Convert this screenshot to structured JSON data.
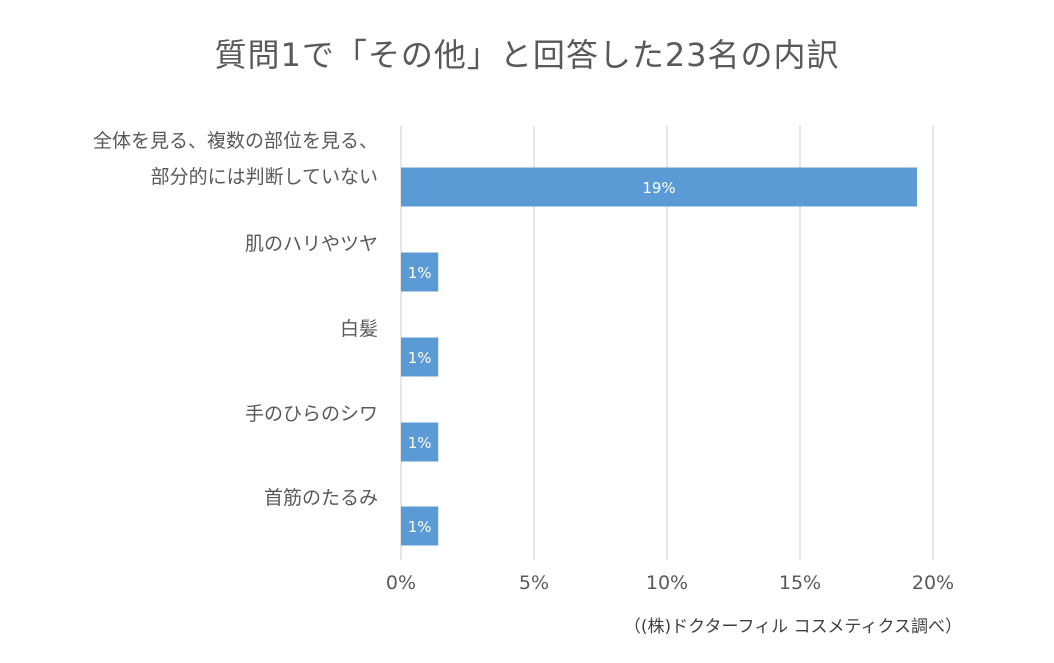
{
  "chart_data": {
    "type": "bar",
    "orientation": "horizontal",
    "title": "質問1で「その他」と回答した23名の内訳",
    "categories": [
      [
        "全体を見る、複数の部位を見る、",
        "部分的には判断していない"
      ],
      [
        "肌のハリやツヤ"
      ],
      [
        "白髪"
      ],
      [
        "手のひらのシワ"
      ],
      [
        "首筋のたるみ"
      ]
    ],
    "values": [
      19.4,
      1.4,
      1.4,
      1.4,
      1.4
    ],
    "data_labels": [
      "19%",
      "1%",
      "1%",
      "1%",
      "1%"
    ],
    "x_ticks": [
      "0%",
      "5%",
      "10%",
      "15%",
      "20%"
    ],
    "xlim": [
      0,
      20
    ],
    "grid": true,
    "bar_color": "#5b9bd5",
    "grid_color": "#d9d9d9"
  },
  "source": "（(株)ドクターフィル コスメティクス調べ）"
}
